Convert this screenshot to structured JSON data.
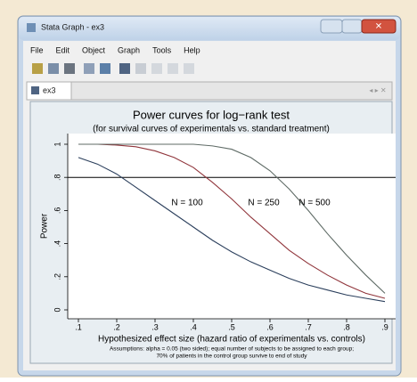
{
  "window": {
    "title": "Stata Graph - ex3",
    "menu": [
      "File",
      "Edit",
      "Object",
      "Graph",
      "Tools",
      "Help"
    ],
    "tab": "ex3"
  },
  "chart_data": {
    "type": "line",
    "title": "Power curves for log−rank test",
    "subtitle": "(for survival curves of experimentals vs. standard treatment)",
    "x_label": "Hypothesized effect size (hazard ratio of experimentals vs. controls)",
    "y_label": "Power",
    "note": [
      "Assumptions: alpha = 0.05 (two sided); equal number of subjects to be assigned to each group;",
      "70% of patients in the control group survive to end of study"
    ],
    "x": [
      0.1,
      0.15,
      0.2,
      0.25,
      0.3,
      0.35,
      0.4,
      0.45,
      0.5,
      0.55,
      0.6,
      0.65,
      0.7,
      0.75,
      0.8,
      0.85,
      0.9
    ],
    "series": [
      {
        "name": "N = 100",
        "color": "#2b3f5c",
        "values": [
          0.92,
          0.88,
          0.82,
          0.74,
          0.66,
          0.58,
          0.5,
          0.42,
          0.35,
          0.29,
          0.24,
          0.19,
          0.15,
          0.12,
          0.09,
          0.07,
          0.05
        ]
      },
      {
        "name": "N = 250",
        "color": "#90353b",
        "values": [
          1.0,
          1.0,
          0.995,
          0.985,
          0.96,
          0.92,
          0.86,
          0.77,
          0.67,
          0.56,
          0.46,
          0.36,
          0.28,
          0.21,
          0.15,
          0.1,
          0.07
        ]
      },
      {
        "name": "N = 500",
        "color": "#5f6b66",
        "values": [
          1.0,
          1.0,
          1.0,
          1.0,
          1.0,
          1.0,
          1.0,
          0.99,
          0.97,
          0.92,
          0.84,
          0.73,
          0.6,
          0.46,
          0.33,
          0.21,
          0.1
        ]
      }
    ],
    "yline": 0.8,
    "xlim": [
      0.1,
      0.9
    ],
    "xticks": [
      {
        "value": 0.1,
        "label": ".1"
      },
      {
        "value": 0.2,
        "label": ".2"
      },
      {
        "value": 0.3,
        "label": ".3"
      },
      {
        "value": 0.4,
        "label": ".4"
      },
      {
        "value": 0.5,
        "label": ".5"
      },
      {
        "value": 0.6,
        "label": ".6"
      },
      {
        "value": 0.7,
        "label": ".7"
      },
      {
        "value": 0.8,
        "label": ".8"
      },
      {
        "value": 0.9,
        "label": ".9"
      }
    ],
    "ylim": [
      0,
      1
    ],
    "yticks": [
      0,
      {
        "value": 0.2,
        "label": ".2"
      },
      {
        "value": 0.4,
        "label": ".4"
      },
      {
        "value": 0.6,
        "label": ".6"
      },
      {
        "value": 0.8,
        "label": ".8"
      },
      1
    ],
    "grid": false
  }
}
